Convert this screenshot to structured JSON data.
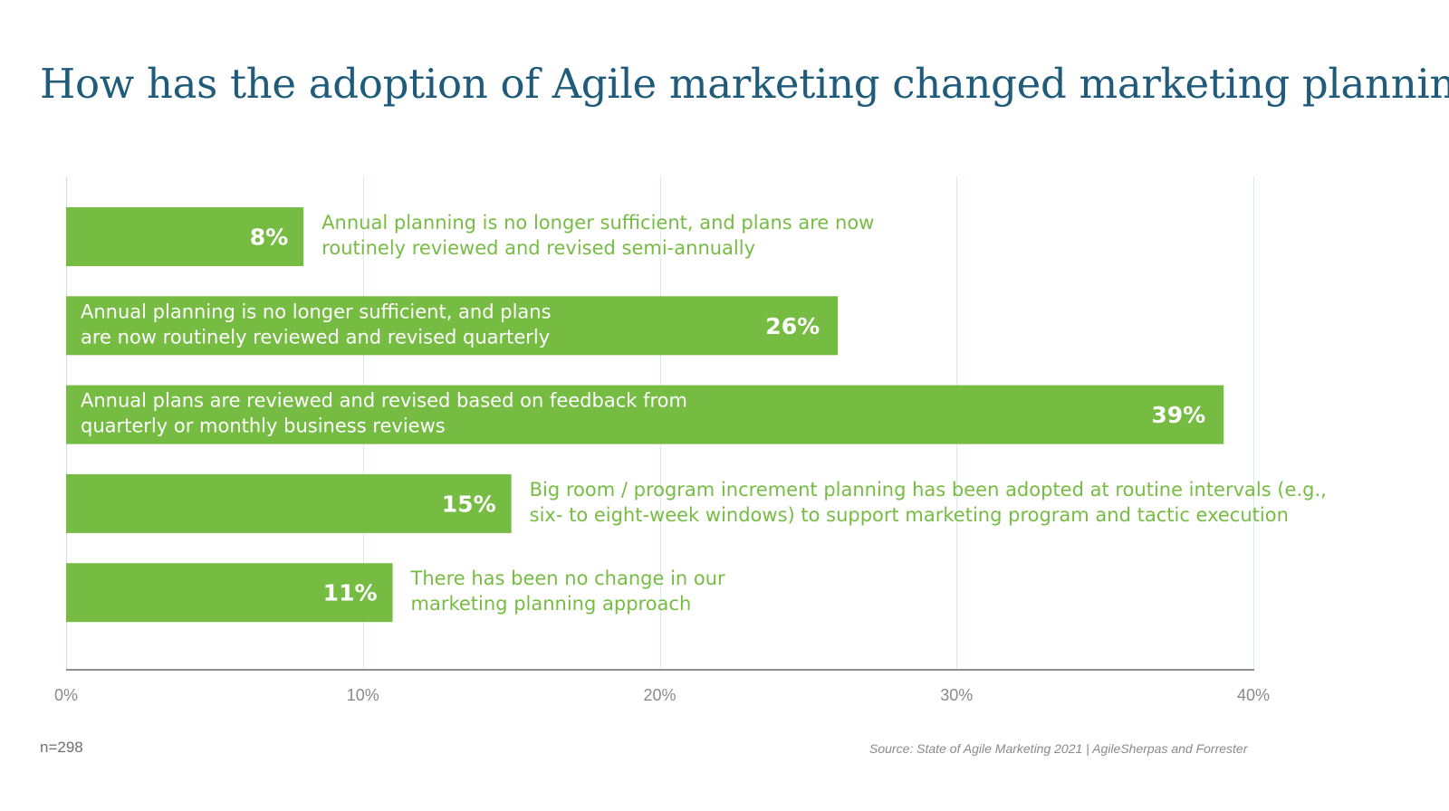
{
  "chart_data": {
    "type": "bar",
    "orientation": "horizontal",
    "title": "How has the adoption of Agile marketing changed marketing planning?",
    "categories": [
      [
        "Annual planning is no longer sufficient, and plans are now",
        "routinely reviewed and revised semi-annually"
      ],
      [
        "Annual planning is no longer sufficient, and plans",
        "are now routinely reviewed and revised quarterly"
      ],
      [
        "Annual plans are reviewed and revised based on feedback from",
        "quarterly or monthly business reviews"
      ],
      [
        "Big room / program increment planning has been adopted at routine intervals (e.g.,",
        "six- to eight-week windows) to support marketing program and tactic execution"
      ],
      [
        "There has been no change in our",
        "marketing planning approach"
      ]
    ],
    "values": [
      8,
      26,
      39,
      15,
      11
    ],
    "value_labels": [
      "8%",
      "26%",
      "39%",
      "15%",
      "11%"
    ],
    "label_inside_bar": [
      false,
      true,
      true,
      false,
      false
    ],
    "xlim": [
      0,
      40
    ],
    "x_ticks": [
      0,
      10,
      20,
      30,
      40
    ],
    "x_tick_labels": [
      "0%",
      "10%",
      "20%",
      "30%",
      "40%"
    ],
    "grid": true,
    "bar_color": "#76bc43",
    "outside_label_color": "#76bc43",
    "inside_label_color": "#ffffff"
  },
  "title_color": "#1f5b7a",
  "sample_size": "n=298",
  "source": "Source: State of Agile Marketing 2021 | AgileSherpas and Forrester"
}
